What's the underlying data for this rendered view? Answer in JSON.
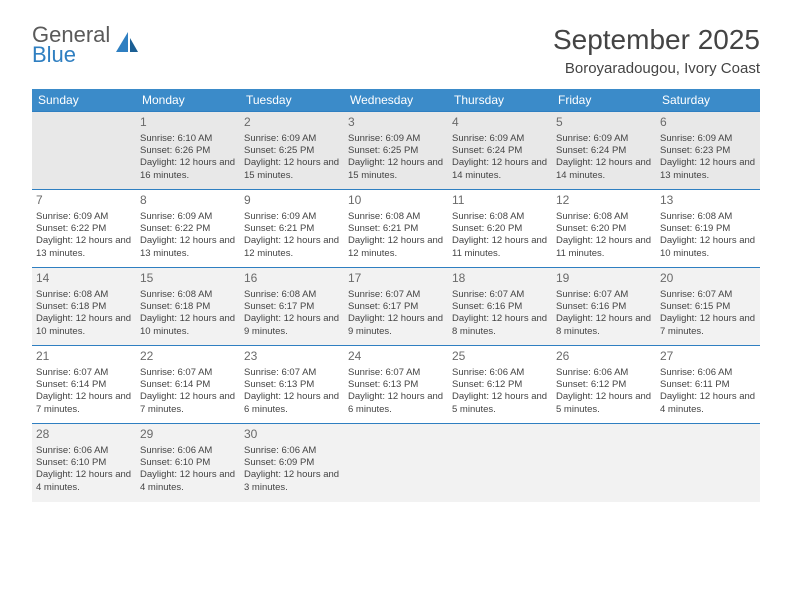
{
  "logo": {
    "line1": "General",
    "line2": "Blue"
  },
  "title": "September 2025",
  "location": "Boroyaradougou, Ivory Coast",
  "colors": {
    "header_bg": "#3b8bc9",
    "header_text": "#ffffff",
    "row_border": "#2f7fc1",
    "alt_row_bg": "#f2f2f2",
    "first_row_bg": "#e8e8e8",
    "text": "#444444",
    "logo_blue": "#2f7fc1"
  },
  "weekdays": [
    "Sunday",
    "Monday",
    "Tuesday",
    "Wednesday",
    "Thursday",
    "Friday",
    "Saturday"
  ],
  "weeks": [
    [
      null,
      {
        "d": "1",
        "sr": "Sunrise: 6:10 AM",
        "ss": "Sunset: 6:26 PM",
        "dl": "Daylight: 12 hours and 16 minutes."
      },
      {
        "d": "2",
        "sr": "Sunrise: 6:09 AM",
        "ss": "Sunset: 6:25 PM",
        "dl": "Daylight: 12 hours and 15 minutes."
      },
      {
        "d": "3",
        "sr": "Sunrise: 6:09 AM",
        "ss": "Sunset: 6:25 PM",
        "dl": "Daylight: 12 hours and 15 minutes."
      },
      {
        "d": "4",
        "sr": "Sunrise: 6:09 AM",
        "ss": "Sunset: 6:24 PM",
        "dl": "Daylight: 12 hours and 14 minutes."
      },
      {
        "d": "5",
        "sr": "Sunrise: 6:09 AM",
        "ss": "Sunset: 6:24 PM",
        "dl": "Daylight: 12 hours and 14 minutes."
      },
      {
        "d": "6",
        "sr": "Sunrise: 6:09 AM",
        "ss": "Sunset: 6:23 PM",
        "dl": "Daylight: 12 hours and 13 minutes."
      }
    ],
    [
      {
        "d": "7",
        "sr": "Sunrise: 6:09 AM",
        "ss": "Sunset: 6:22 PM",
        "dl": "Daylight: 12 hours and 13 minutes."
      },
      {
        "d": "8",
        "sr": "Sunrise: 6:09 AM",
        "ss": "Sunset: 6:22 PM",
        "dl": "Daylight: 12 hours and 13 minutes."
      },
      {
        "d": "9",
        "sr": "Sunrise: 6:09 AM",
        "ss": "Sunset: 6:21 PM",
        "dl": "Daylight: 12 hours and 12 minutes."
      },
      {
        "d": "10",
        "sr": "Sunrise: 6:08 AM",
        "ss": "Sunset: 6:21 PM",
        "dl": "Daylight: 12 hours and 12 minutes."
      },
      {
        "d": "11",
        "sr": "Sunrise: 6:08 AM",
        "ss": "Sunset: 6:20 PM",
        "dl": "Daylight: 12 hours and 11 minutes."
      },
      {
        "d": "12",
        "sr": "Sunrise: 6:08 AM",
        "ss": "Sunset: 6:20 PM",
        "dl": "Daylight: 12 hours and 11 minutes."
      },
      {
        "d": "13",
        "sr": "Sunrise: 6:08 AM",
        "ss": "Sunset: 6:19 PM",
        "dl": "Daylight: 12 hours and 10 minutes."
      }
    ],
    [
      {
        "d": "14",
        "sr": "Sunrise: 6:08 AM",
        "ss": "Sunset: 6:18 PM",
        "dl": "Daylight: 12 hours and 10 minutes."
      },
      {
        "d": "15",
        "sr": "Sunrise: 6:08 AM",
        "ss": "Sunset: 6:18 PM",
        "dl": "Daylight: 12 hours and 10 minutes."
      },
      {
        "d": "16",
        "sr": "Sunrise: 6:08 AM",
        "ss": "Sunset: 6:17 PM",
        "dl": "Daylight: 12 hours and 9 minutes."
      },
      {
        "d": "17",
        "sr": "Sunrise: 6:07 AM",
        "ss": "Sunset: 6:17 PM",
        "dl": "Daylight: 12 hours and 9 minutes."
      },
      {
        "d": "18",
        "sr": "Sunrise: 6:07 AM",
        "ss": "Sunset: 6:16 PM",
        "dl": "Daylight: 12 hours and 8 minutes."
      },
      {
        "d": "19",
        "sr": "Sunrise: 6:07 AM",
        "ss": "Sunset: 6:16 PM",
        "dl": "Daylight: 12 hours and 8 minutes."
      },
      {
        "d": "20",
        "sr": "Sunrise: 6:07 AM",
        "ss": "Sunset: 6:15 PM",
        "dl": "Daylight: 12 hours and 7 minutes."
      }
    ],
    [
      {
        "d": "21",
        "sr": "Sunrise: 6:07 AM",
        "ss": "Sunset: 6:14 PM",
        "dl": "Daylight: 12 hours and 7 minutes."
      },
      {
        "d": "22",
        "sr": "Sunrise: 6:07 AM",
        "ss": "Sunset: 6:14 PM",
        "dl": "Daylight: 12 hours and 7 minutes."
      },
      {
        "d": "23",
        "sr": "Sunrise: 6:07 AM",
        "ss": "Sunset: 6:13 PM",
        "dl": "Daylight: 12 hours and 6 minutes."
      },
      {
        "d": "24",
        "sr": "Sunrise: 6:07 AM",
        "ss": "Sunset: 6:13 PM",
        "dl": "Daylight: 12 hours and 6 minutes."
      },
      {
        "d": "25",
        "sr": "Sunrise: 6:06 AM",
        "ss": "Sunset: 6:12 PM",
        "dl": "Daylight: 12 hours and 5 minutes."
      },
      {
        "d": "26",
        "sr": "Sunrise: 6:06 AM",
        "ss": "Sunset: 6:12 PM",
        "dl": "Daylight: 12 hours and 5 minutes."
      },
      {
        "d": "27",
        "sr": "Sunrise: 6:06 AM",
        "ss": "Sunset: 6:11 PM",
        "dl": "Daylight: 12 hours and 4 minutes."
      }
    ],
    [
      {
        "d": "28",
        "sr": "Sunrise: 6:06 AM",
        "ss": "Sunset: 6:10 PM",
        "dl": "Daylight: 12 hours and 4 minutes."
      },
      {
        "d": "29",
        "sr": "Sunrise: 6:06 AM",
        "ss": "Sunset: 6:10 PM",
        "dl": "Daylight: 12 hours and 4 minutes."
      },
      {
        "d": "30",
        "sr": "Sunrise: 6:06 AM",
        "ss": "Sunset: 6:09 PM",
        "dl": "Daylight: 12 hours and 3 minutes."
      },
      null,
      null,
      null,
      null
    ]
  ]
}
